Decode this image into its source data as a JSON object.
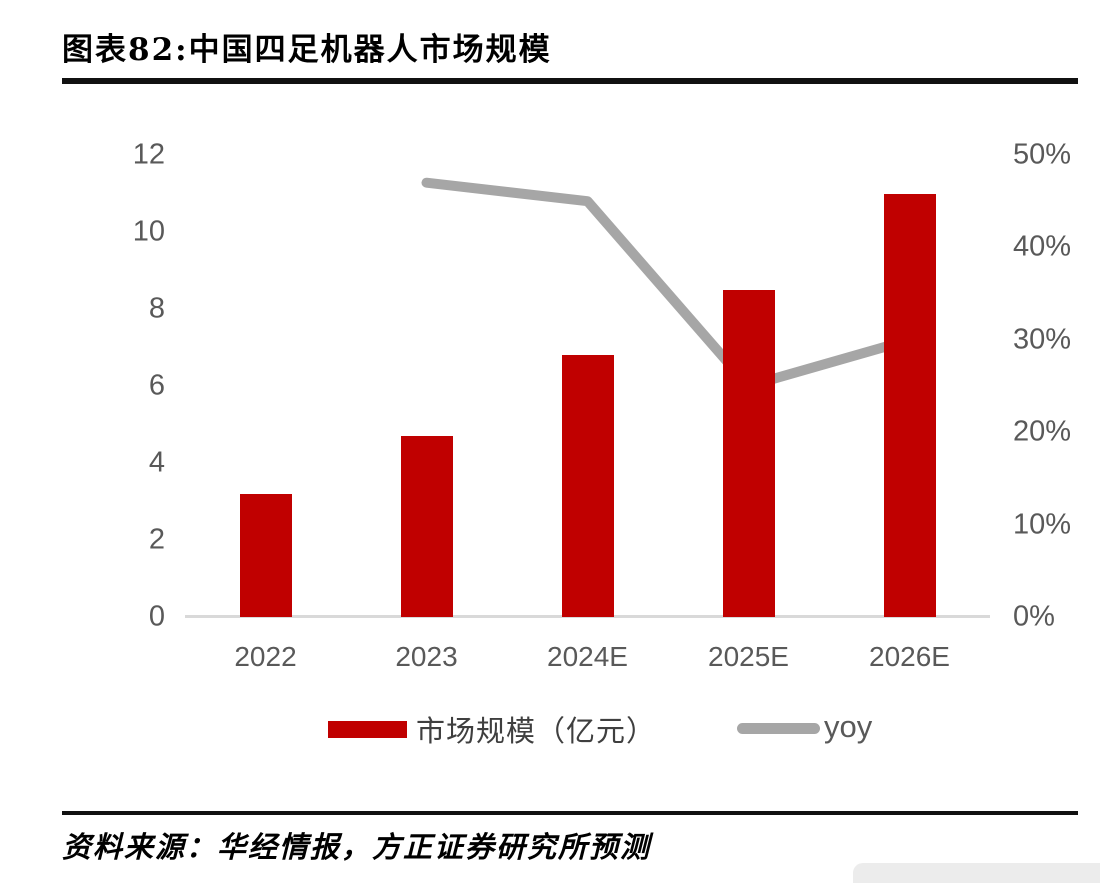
{
  "page": {
    "title": "图表82:中国四足机器人市场规模",
    "source": "资料来源：华经情报，方正证券研究所预测"
  },
  "legend": {
    "bar_label": "市场规模（亿元）",
    "line_label": "yoy"
  },
  "colors": {
    "bar": "#c00000",
    "line": "#a6a6a6",
    "axis_text": "#595959",
    "axis_line": "#d9d9d9",
    "rule": "#111111"
  },
  "chart_data": {
    "type": "bar",
    "subtype": "combo-bar-line-dual-axis",
    "title": "中国四足机器人市场规模",
    "categories": [
      "2022",
      "2023",
      "2024E",
      "2025E",
      "2026E"
    ],
    "series": [
      {
        "name": "市场规模（亿元）",
        "type": "bar",
        "axis": "left",
        "values": [
          3.2,
          4.7,
          6.8,
          8.5,
          11.0
        ]
      },
      {
        "name": "yoy",
        "type": "line",
        "axis": "right",
        "unit": "%",
        "values": [
          null,
          47,
          45,
          25,
          30
        ]
      }
    ],
    "left_axis": {
      "min": 0,
      "max": 12,
      "ticks": [
        "0",
        "2",
        "4",
        "6",
        "8",
        "10",
        "12"
      ]
    },
    "right_axis": {
      "min": 0,
      "max": 50,
      "ticks": [
        "0%",
        "10%",
        "20%",
        "30%",
        "40%",
        "50%"
      ]
    },
    "grid": false,
    "legend_position": "bottom"
  }
}
